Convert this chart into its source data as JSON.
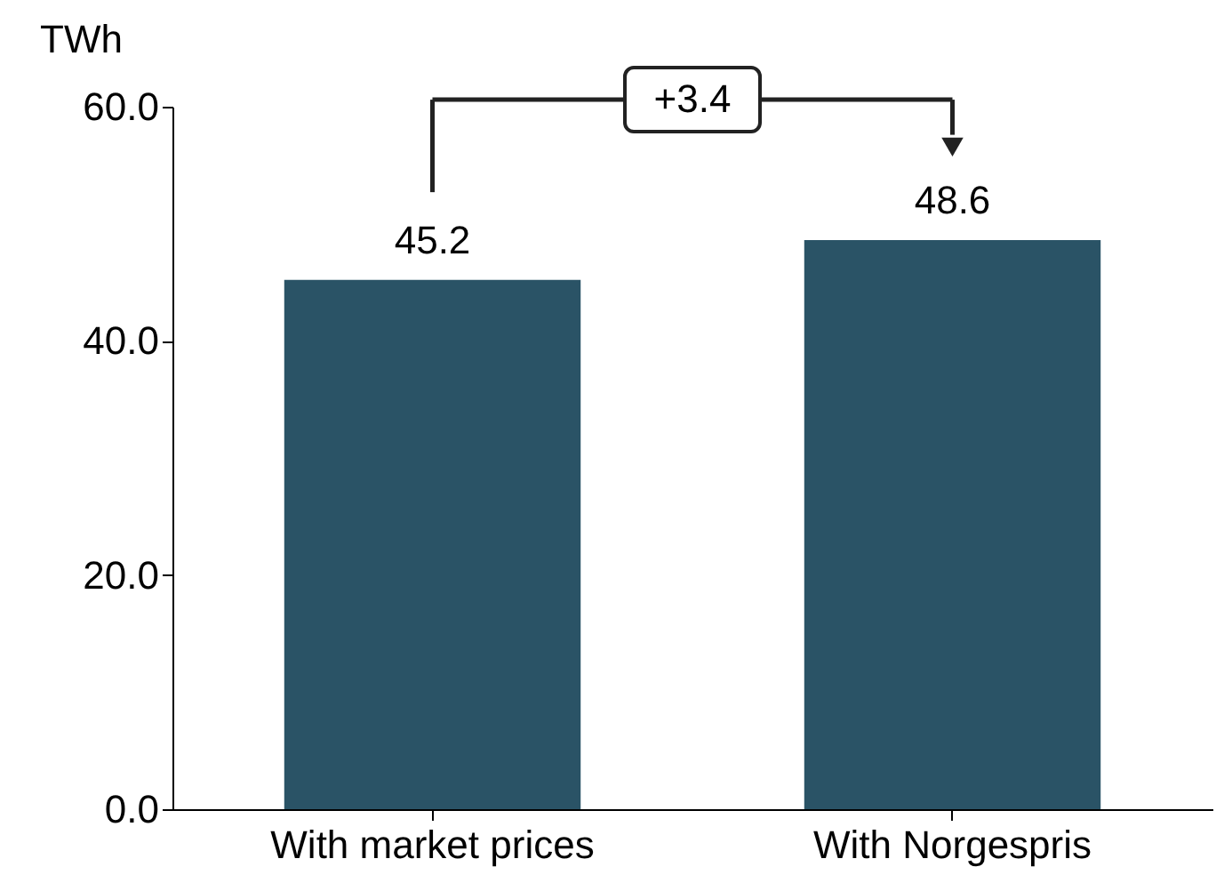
{
  "chart_data": {
    "type": "bar",
    "ylabel": "TWh",
    "categories": [
      "With market prices",
      "With Norgespris"
    ],
    "values": [
      45.2,
      48.6
    ],
    "color": "#2a5366",
    "ylim": [
      0,
      60
    ],
    "yticks": [
      {
        "value": 0,
        "label": "0.0"
      },
      {
        "value": 20,
        "label": "20.0"
      },
      {
        "value": 40,
        "label": "40.0"
      },
      {
        "value": 60,
        "label": "60.0"
      }
    ],
    "data_labels": true,
    "annotations": [
      "+3.4"
    ],
    "grid": false
  }
}
